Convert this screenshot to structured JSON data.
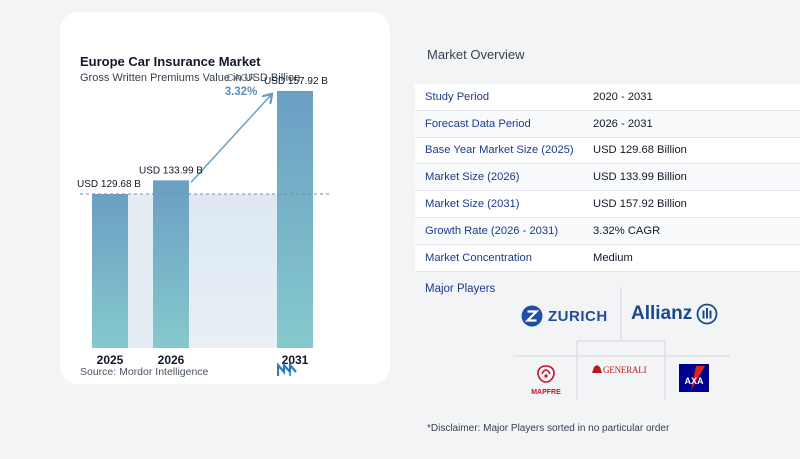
{
  "chart_data": {
    "type": "bar",
    "title": "Europe Car Insurance Market",
    "subtitle": "Gross Written Premiums Value in USD Billion",
    "categories": [
      "2025",
      "2026",
      "2031"
    ],
    "values": [
      129.68,
      133.99,
      157.92
    ],
    "value_labels": [
      "USD 129.68 B",
      "USD 133.99 B",
      "USD 157.92 B"
    ],
    "cagr_label": "CAGR",
    "cagr_value": "3.32%",
    "bar_color": "#6a9fc4",
    "bar_color_bottom": "#86c9cc",
    "grid": false
  },
  "source": "Source:  Mordor Intelligence",
  "overview": {
    "title": "Market Overview",
    "rows": [
      {
        "label": "Study Period",
        "value": "2020 - 2031"
      },
      {
        "label": "Forecast Data Period",
        "value": "2026 - 2031"
      },
      {
        "label": "Base Year Market Size (2025)",
        "value": "USD 129.68 Billion"
      },
      {
        "label": "Market Size (2026)",
        "value": "USD 133.99 Billion"
      },
      {
        "label": "Market Size (2031)",
        "value": "USD 157.92 Billion"
      },
      {
        "label": "Growth Rate (2026 - 2031)",
        "value": "3.32% CAGR"
      },
      {
        "label": "Market Concentration",
        "value": "Medium"
      }
    ]
  },
  "players": {
    "title": "Major Players",
    "zurich": "ZURICH",
    "allianz": "Allianz",
    "mapfre": "MAPFRE",
    "generali": "GENERALI",
    "axa": "AXA"
  },
  "disclaimer": "*Disclaimer: Major Players sorted in no particular order"
}
